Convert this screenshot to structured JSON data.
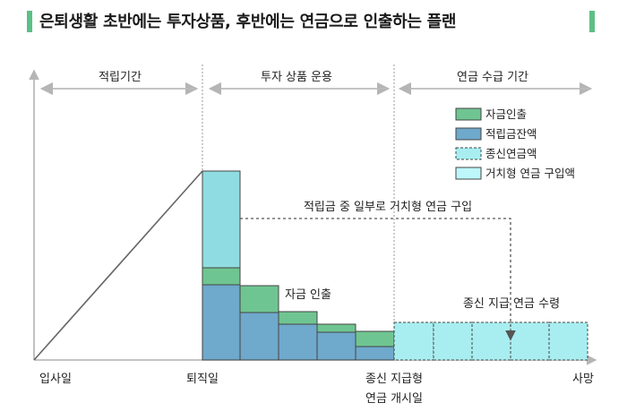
{
  "title": "은퇴생활 초반에는 투자상품, 후반에는 연금으로 인출하는 플랜",
  "phases": [
    {
      "label": "적립기간"
    },
    {
      "label": "투자 상품 운용"
    },
    {
      "label": "연금 수급 기간"
    }
  ],
  "legend": [
    {
      "label": "자금인출",
      "color": "#6fc591",
      "style": "solid"
    },
    {
      "label": "적립금잔액",
      "color": "#6fa9cb",
      "style": "solid"
    },
    {
      "label": "종신연금액",
      "color": "#a8eef0",
      "style": "dashed"
    },
    {
      "label": "거치형 연금 구입액",
      "color": "#bdf7fb",
      "style": "solid"
    }
  ],
  "annotations": {
    "purchase": "적립금 중 일부로 거치형 연금 구입",
    "withdrawal": "자금 인출",
    "annuity": "종신 지급 연금 수령"
  },
  "x_labels": {
    "join": "입사일",
    "retire": "퇴직일",
    "annuity_start_1": "종신 지급형",
    "annuity_start_2": "연금 개시일",
    "death": "사망"
  },
  "colors": {
    "withdraw": "#6fc591",
    "balance": "#6fa9cb",
    "deferred": "#8fdde2",
    "lifetime": "#a8eef0",
    "accent": "#5cbf86"
  }
}
